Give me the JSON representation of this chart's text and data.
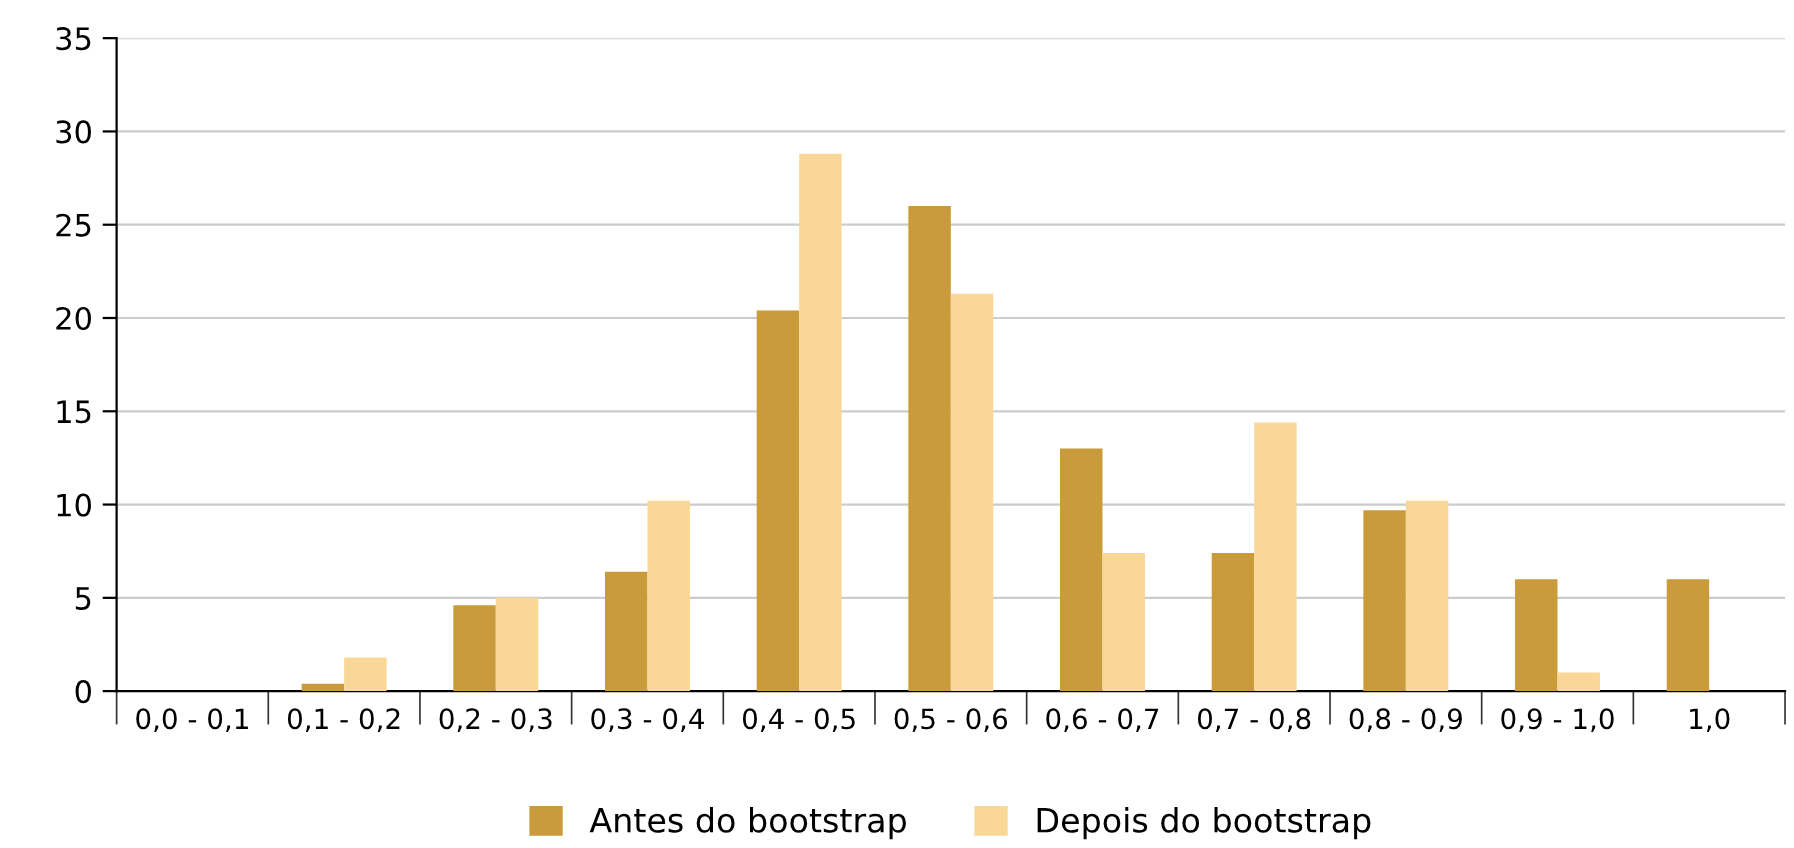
{
  "chart_data": {
    "type": "bar",
    "categories": [
      "0,0 - 0,1",
      "0,1 - 0,2",
      "0,2 - 0,3",
      "0,3 - 0,4",
      "0,4 - 0,5",
      "0,5 - 0,6",
      "0,6 - 0,7",
      "0,7 - 0,8",
      "0,8 - 0,9",
      "0,9 - 1,0",
      "1,0"
    ],
    "series": [
      {
        "name": "Antes do bootstrap",
        "color": "#c99b3b",
        "values": [
          0,
          0.4,
          4.6,
          6.4,
          20.4,
          26.0,
          13.0,
          7.4,
          9.7,
          6.0,
          6.0
        ]
      },
      {
        "name": "Depois do bootstrap",
        "color": "#f9d897",
        "values": [
          0,
          1.8,
          5.0,
          10.2,
          28.8,
          21.3,
          7.4,
          14.4,
          10.2,
          1.0,
          0
        ]
      }
    ],
    "ylim": [
      0,
      35
    ],
    "yticks": [
      0,
      5,
      10,
      15,
      20,
      25,
      30,
      35
    ],
    "grid": "y",
    "legend": "bottom"
  }
}
